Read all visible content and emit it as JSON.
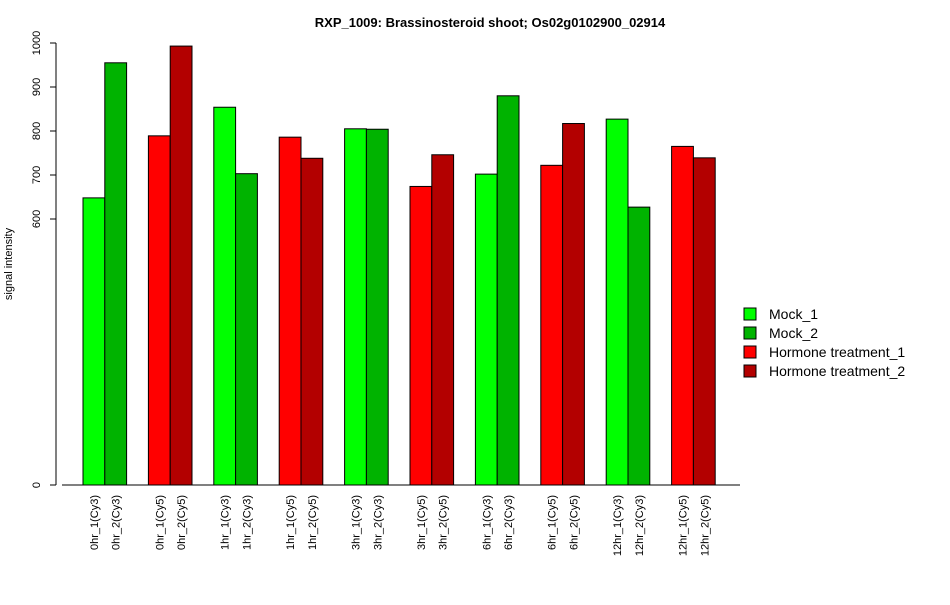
{
  "chart_data": {
    "type": "bar",
    "title": "RXP_1009: Brassinosteroid shoot; Os02g0102900_02914",
    "xlabel": "",
    "ylabel": "signal intensity",
    "y_ticks": [
      0,
      600,
      700,
      800,
      900,
      1000
    ],
    "y_scale": "broken (0 to 600 compressed)",
    "legend_position": "right",
    "legend": [
      {
        "name": "Mock_1",
        "color": "#00ff00"
      },
      {
        "name": "Mock_2",
        "color": "#00b300"
      },
      {
        "name": "Hormone treatment_1",
        "color": "#ff0000"
      },
      {
        "name": "Hormone treatment_2",
        "color": "#b30000"
      }
    ],
    "groups": [
      {
        "bars": [
          {
            "label": "0hr_1(Cy3)",
            "value": 648,
            "color": "#00ff00"
          },
          {
            "label": "0hr_2(Cy3)",
            "value": 955,
            "color": "#00b300"
          }
        ]
      },
      {
        "bars": [
          {
            "label": "0hr_1(Cy5)",
            "value": 789,
            "color": "#ff0000"
          },
          {
            "label": "0hr_2(Cy5)",
            "value": 993,
            "color": "#b30000"
          }
        ]
      },
      {
        "bars": [
          {
            "label": "1hr_1(Cy3)",
            "value": 854,
            "color": "#00ff00"
          },
          {
            "label": "1hr_2(Cy3)",
            "value": 703,
            "color": "#00b300"
          }
        ]
      },
      {
        "bars": [
          {
            "label": "1hr_1(Cy5)",
            "value": 786,
            "color": "#ff0000"
          },
          {
            "label": "1hr_2(Cy5)",
            "value": 738,
            "color": "#b30000"
          }
        ]
      },
      {
        "bars": [
          {
            "label": "3hr_1(Cy3)",
            "value": 805,
            "color": "#00ff00"
          },
          {
            "label": "3hr_2(Cy3)",
            "value": 804,
            "color": "#00b300"
          }
        ]
      },
      {
        "bars": [
          {
            "label": "3hr_1(Cy5)",
            "value": 674,
            "color": "#ff0000"
          },
          {
            "label": "3hr_2(Cy5)",
            "value": 746,
            "color": "#b30000"
          }
        ]
      },
      {
        "bars": [
          {
            "label": "6hr_1(Cy3)",
            "value": 702,
            "color": "#00ff00"
          },
          {
            "label": "6hr_2(Cy3)",
            "value": 880,
            "color": "#00b300"
          }
        ]
      },
      {
        "bars": [
          {
            "label": "6hr_1(Cy5)",
            "value": 722,
            "color": "#ff0000"
          },
          {
            "label": "6hr_2(Cy5)",
            "value": 817,
            "color": "#b30000"
          }
        ]
      },
      {
        "bars": [
          {
            "label": "12hr_1(Cy3)",
            "value": 827,
            "color": "#00ff00"
          },
          {
            "label": "12hr_2(Cy3)",
            "value": 627,
            "color": "#00b300"
          }
        ]
      },
      {
        "bars": [
          {
            "label": "12hr_1(Cy5)",
            "value": 765,
            "color": "#ff0000"
          },
          {
            "label": "12hr_2(Cy5)",
            "value": 739,
            "color": "#b30000"
          }
        ]
      }
    ]
  }
}
